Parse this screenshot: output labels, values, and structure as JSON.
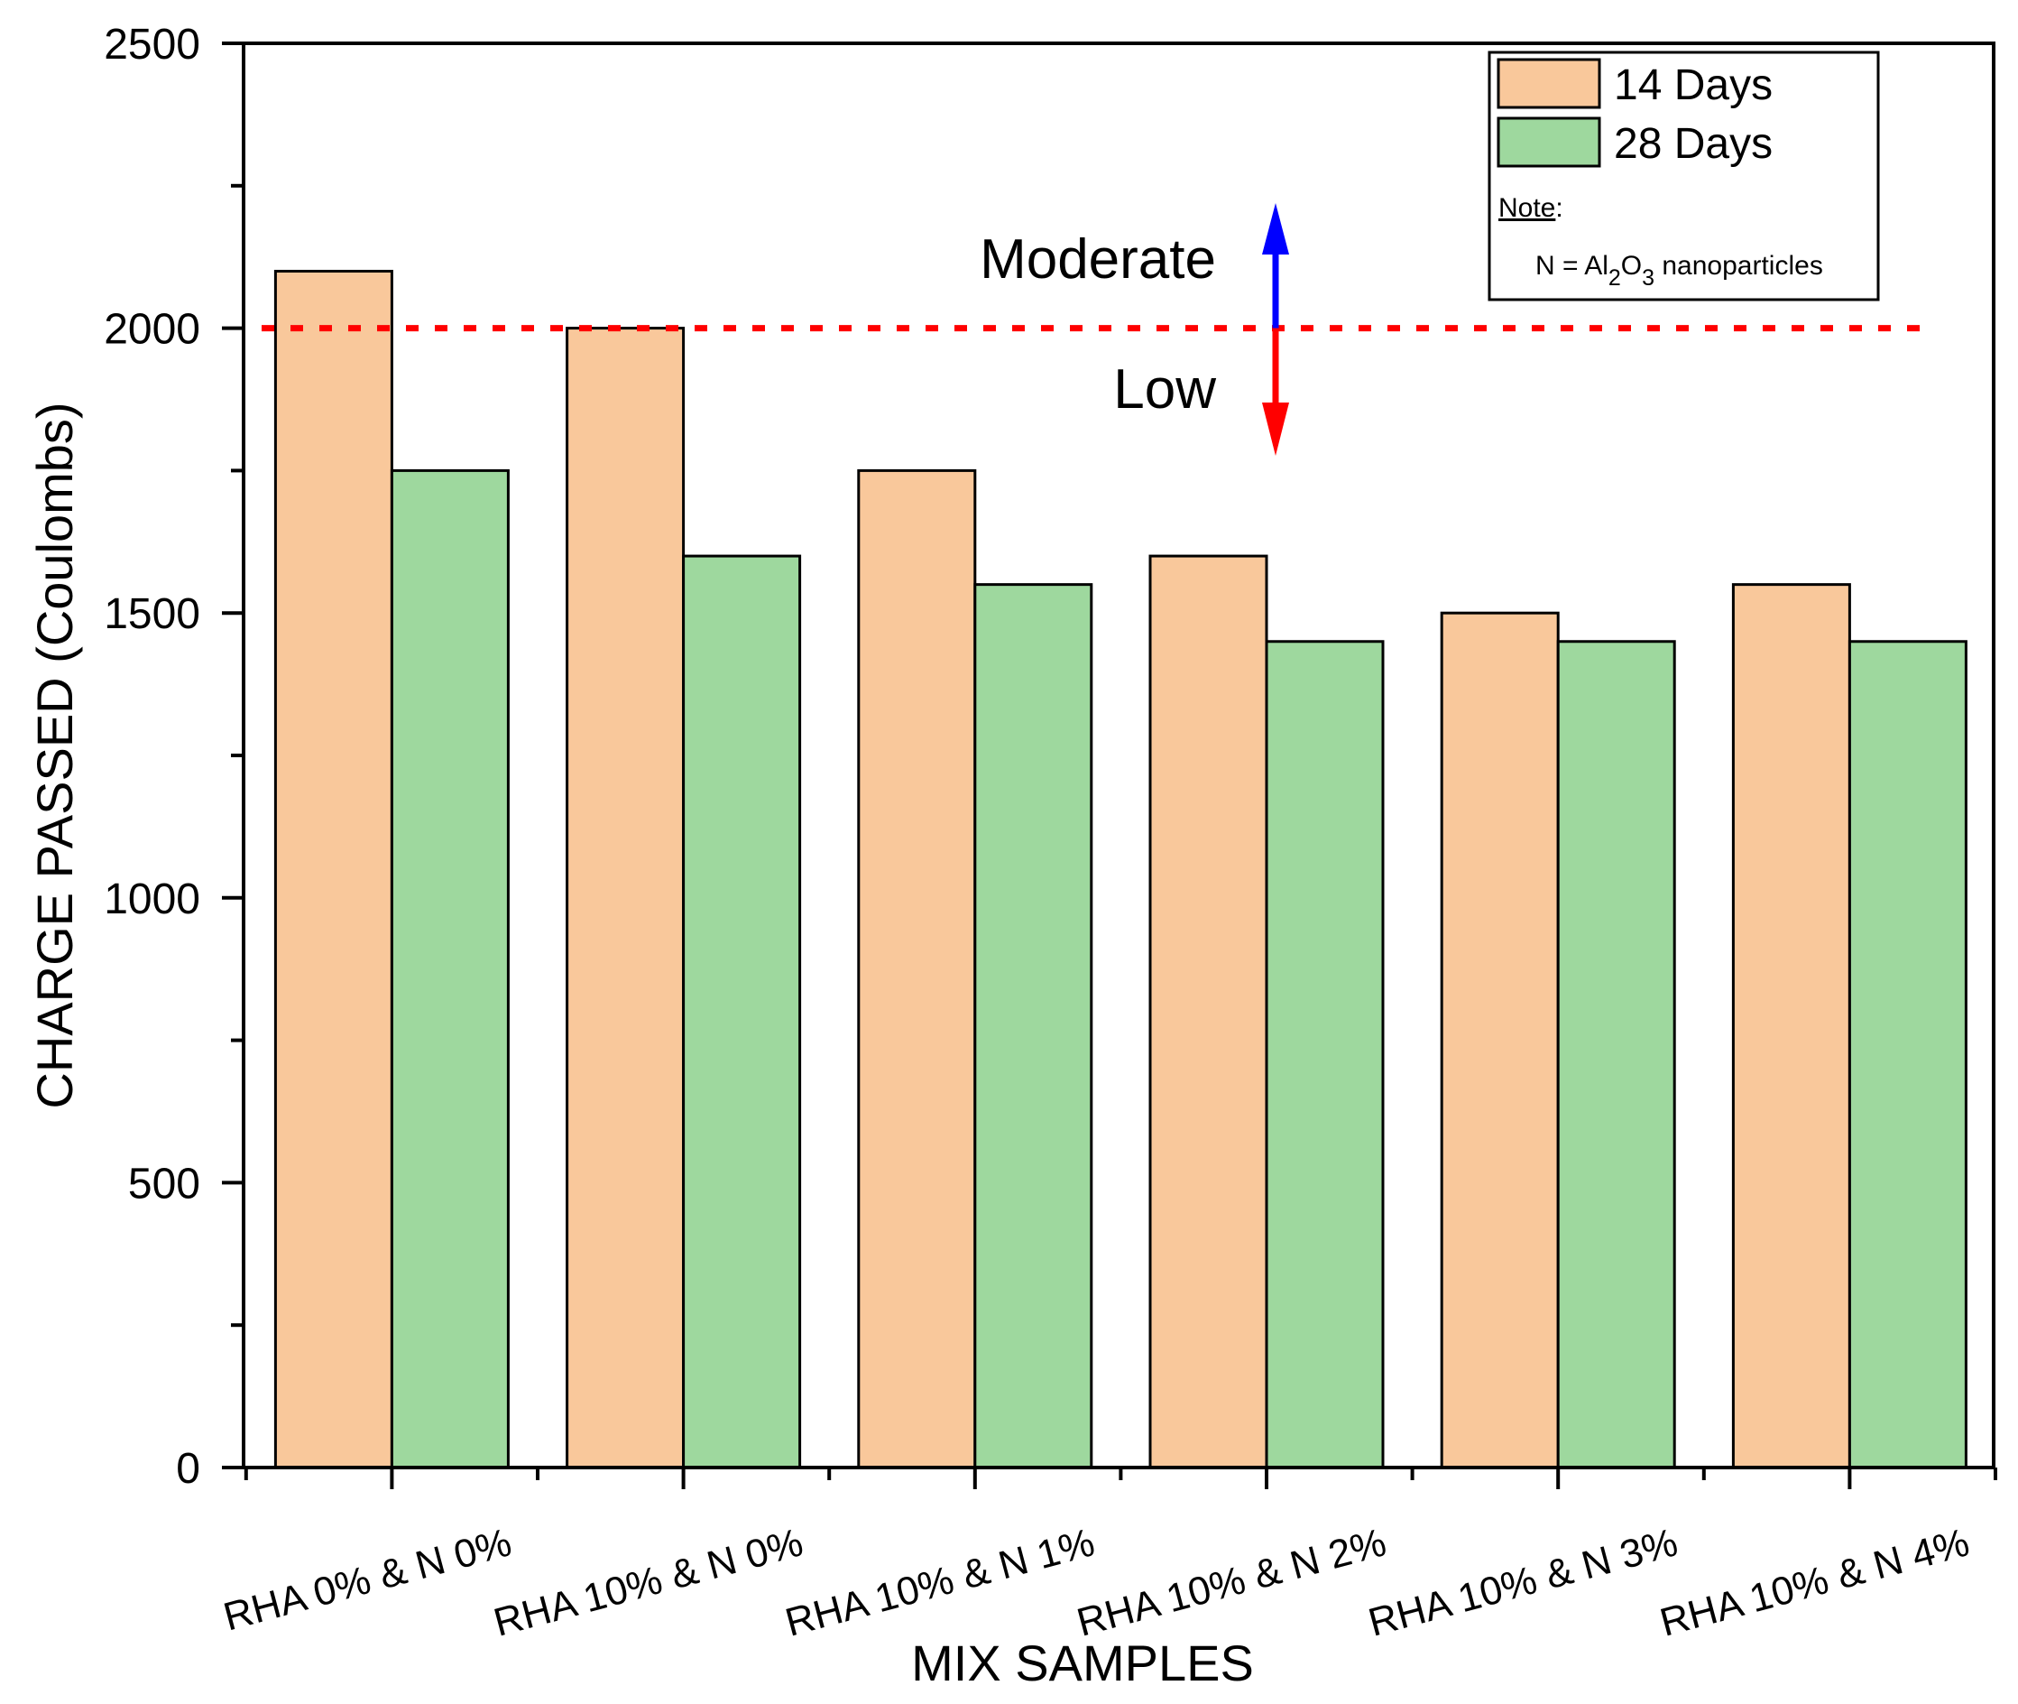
{
  "chart_data": {
    "type": "bar",
    "title": "",
    "xlabel": "MIX SAMPLES",
    "ylabel": "CHARGE PASSED (Coulombs)",
    "ylim": [
      0,
      2500
    ],
    "yticks": [
      0,
      500,
      1000,
      1500,
      2000,
      2500
    ],
    "categories": [
      "RHA 0% & N 0%",
      "RHA 10% & N 0%",
      "RHA 10% & N 1%",
      "RHA 10% & N 2%",
      "RHA 10% & N 3%",
      "RHA 10% & N 4%"
    ],
    "series": [
      {
        "name": "14 Days",
        "color": "#F9C89B",
        "values": [
          2100,
          2000,
          1750,
          1600,
          1500,
          1550
        ]
      },
      {
        "name": "28 Days",
        "color": "#9ED89E",
        "values": [
          1750,
          1600,
          1550,
          1450,
          1450,
          1450
        ]
      }
    ],
    "threshold": {
      "value": 2000,
      "color": "#FF0000",
      "style": "dotted"
    },
    "annotations": {
      "above": {
        "text": "Moderate",
        "arrow_color": "#0000FF"
      },
      "below": {
        "text": "Low",
        "arrow_color": "#FF0000"
      }
    },
    "note": {
      "heading": "Note",
      "heading_suffix": ":",
      "prefix": "N = Al",
      "sub1": "2",
      "middle": "O",
      "sub2": "3",
      "suffix": " nanoparticles"
    },
    "legend_position": "top-right",
    "grid": false
  }
}
